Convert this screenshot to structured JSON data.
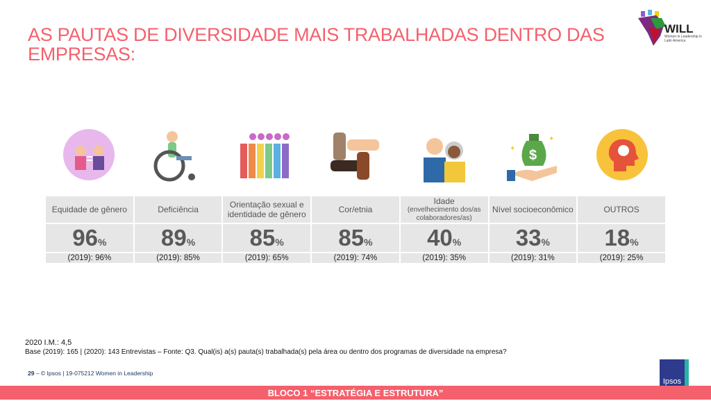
{
  "title": "AS PAUTAS DE DIVERSIDADE MAIS TRABALHADAS DENTRO DAS EMPRESAS:",
  "logo": {
    "name": "WILL",
    "subtitle": "Women in Leadership in Latin America"
  },
  "columns": [
    {
      "label": "Equidade de gênero",
      "sub": "",
      "value": "96",
      "unit": "%",
      "prev": "(2019): 96%",
      "icon": "gender-equality-icon"
    },
    {
      "label": "Deficiência",
      "sub": "",
      "value": "89",
      "unit": "%",
      "prev": "(2019): 85%",
      "icon": "wheelchair-icon"
    },
    {
      "label": "Orientação sexual e identidade de gênero",
      "sub": "",
      "value": "85",
      "unit": "%",
      "prev": "(2019): 65%",
      "icon": "rainbow-people-icon"
    },
    {
      "label": "Cor/etnia",
      "sub": "",
      "value": "85",
      "unit": "%",
      "prev": "(2019): 74%",
      "icon": "hands-diversity-icon"
    },
    {
      "label": "Idade",
      "sub": "(envelhecimento dos/as colaboradores/as)",
      "value": "40",
      "unit": "%",
      "prev": "(2019): 35%",
      "icon": "elderly-couple-icon"
    },
    {
      "label": "Nível socioeconômico",
      "sub": "",
      "value": "33",
      "unit": "%",
      "prev": "(2019): 31%",
      "icon": "money-hand-icon"
    },
    {
      "label": "OUTROS",
      "sub": "",
      "value": "18",
      "unit": "%",
      "prev": "(2019): 25%",
      "icon": "head-idea-icon"
    }
  ],
  "notes": {
    "im": "2020 I.M.: 4,5",
    "base": "Base (2019): 165 | (2020): 143 Entrevistas – Fonte: Q3. Qual(is) a(s) pauta(s) trabalhada(s) pela área ou dentro dos programas de diversidade na empresa?"
  },
  "footer": {
    "page": "29",
    "text": "– © Ipsos | 19-075212 Women in Leadership",
    "brand": "Ipsos"
  },
  "band": "BLOCO 1 “ESTRATÉGIA E ESTRUTURA”"
}
